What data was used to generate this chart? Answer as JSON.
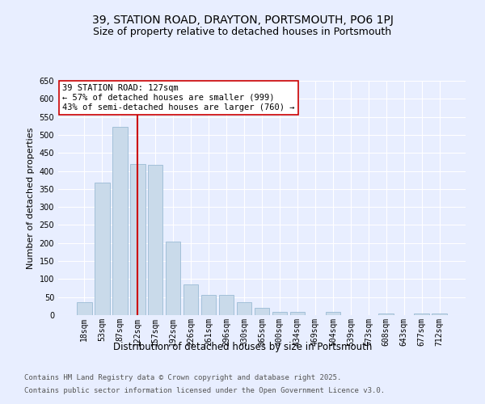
{
  "title1": "39, STATION ROAD, DRAYTON, PORTSMOUTH, PO6 1PJ",
  "title2": "Size of property relative to detached houses in Portsmouth",
  "xlabel": "Distribution of detached houses by size in Portsmouth",
  "ylabel": "Number of detached properties",
  "categories": [
    "18sqm",
    "53sqm",
    "87sqm",
    "122sqm",
    "157sqm",
    "192sqm",
    "226sqm",
    "261sqm",
    "296sqm",
    "330sqm",
    "365sqm",
    "400sqm",
    "434sqm",
    "469sqm",
    "504sqm",
    "539sqm",
    "573sqm",
    "608sqm",
    "643sqm",
    "677sqm",
    "712sqm"
  ],
  "values": [
    35,
    368,
    522,
    420,
    416,
    205,
    85,
    55,
    55,
    35,
    20,
    10,
    10,
    0,
    8,
    0,
    0,
    4,
    0,
    4,
    5
  ],
  "bar_color": "#c9daea",
  "bar_edge_color": "#9bbbd4",
  "redline_index": 3,
  "redline_color": "#cc0000",
  "annotation_text": "39 STATION ROAD: 127sqm\n← 57% of detached houses are smaller (999)\n43% of semi-detached houses are larger (760) →",
  "annotation_box_color": "#ffffff",
  "annotation_box_edge": "#cc0000",
  "annotation_fontsize": 7.5,
  "footer1": "Contains HM Land Registry data © Crown copyright and database right 2025.",
  "footer2": "Contains public sector information licensed under the Open Government Licence v3.0.",
  "bg_color": "#e8eeff",
  "plot_bg_color": "#e8eeff",
  "grid_color": "#ffffff",
  "ylim": [
    0,
    650
  ],
  "yticks": [
    0,
    50,
    100,
    150,
    200,
    250,
    300,
    350,
    400,
    450,
    500,
    550,
    600,
    650
  ],
  "title1_fontsize": 10,
  "title2_fontsize": 9,
  "xlabel_fontsize": 8.5,
  "ylabel_fontsize": 8,
  "tick_fontsize": 7,
  "footer_fontsize": 6.5
}
